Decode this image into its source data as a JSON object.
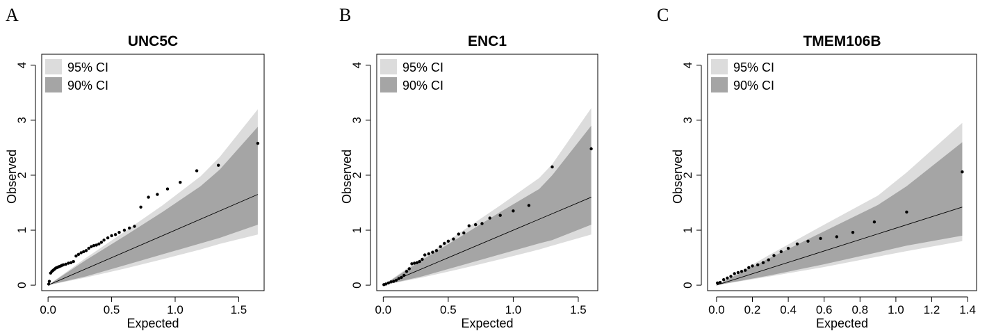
{
  "chart_data": [
    {
      "type": "scatter",
      "panel_label": "A",
      "title": "UNC5C",
      "xlabel": "Expected",
      "ylabel": "Observed",
      "xlim": [
        -0.05,
        1.7
      ],
      "ylim": [
        -0.1,
        4.2
      ],
      "xticks": [
        "0.0",
        "0.5",
        "1.0",
        "1.5"
      ],
      "xtick_values": [
        0,
        0.5,
        1.0,
        1.5
      ],
      "yticks": [
        "0",
        "1",
        "2",
        "3",
        "4"
      ],
      "ytick_values": [
        0,
        1,
        2,
        3,
        4
      ],
      "legend": [
        "95% CI",
        "90% CI"
      ],
      "legend_position": "top-left",
      "band_colors": {
        "ci95": "#dcdcdc",
        "ci90": "#a5a5a5"
      },
      "ci95": {
        "x": [
          0,
          0.3,
          0.6,
          0.9,
          1.2,
          1.35,
          1.65
        ],
        "upper": [
          0,
          0.5,
          0.97,
          1.45,
          1.98,
          2.33,
          3.2
        ],
        "lower": [
          0,
          0.14,
          0.3,
          0.47,
          0.65,
          0.75,
          0.92
        ]
      },
      "ci90": {
        "x": [
          0,
          0.3,
          0.6,
          0.9,
          1.2,
          1.35,
          1.65
        ],
        "upper": [
          0,
          0.46,
          0.89,
          1.33,
          1.8,
          2.1,
          2.88
        ],
        "lower": [
          0,
          0.16,
          0.36,
          0.56,
          0.76,
          0.86,
          1.1
        ]
      },
      "reference_line": {
        "x": [
          0,
          1.65
        ],
        "y": [
          0,
          1.65
        ]
      },
      "points": {
        "x": [
          0.005,
          0.01,
          0.02,
          0.03,
          0.04,
          0.05,
          0.06,
          0.07,
          0.08,
          0.09,
          0.1,
          0.11,
          0.12,
          0.14,
          0.16,
          0.18,
          0.2,
          0.22,
          0.24,
          0.26,
          0.28,
          0.3,
          0.32,
          0.34,
          0.36,
          0.38,
          0.4,
          0.42,
          0.44,
          0.47,
          0.5,
          0.53,
          0.56,
          0.6,
          0.64,
          0.68,
          0.73,
          0.79,
          0.86,
          0.94,
          1.04,
          1.17,
          1.34,
          1.65
        ],
        "y": [
          0.02,
          0.07,
          0.22,
          0.25,
          0.27,
          0.29,
          0.31,
          0.32,
          0.33,
          0.34,
          0.35,
          0.36,
          0.37,
          0.38,
          0.4,
          0.41,
          0.43,
          0.53,
          0.56,
          0.59,
          0.61,
          0.63,
          0.67,
          0.7,
          0.72,
          0.73,
          0.75,
          0.78,
          0.82,
          0.86,
          0.9,
          0.92,
          0.96,
          1.0,
          1.04,
          1.07,
          1.42,
          1.6,
          1.65,
          1.75,
          1.87,
          2.08,
          2.18,
          2.58
        ]
      }
    },
    {
      "type": "scatter",
      "panel_label": "B",
      "title": "ENC1",
      "xlabel": "Expected",
      "ylabel": "Observed",
      "xlim": [
        -0.05,
        1.65
      ],
      "ylim": [
        -0.1,
        4.2
      ],
      "xticks": [
        "0.0",
        "0.5",
        "1.0",
        "1.5"
      ],
      "xtick_values": [
        0,
        0.5,
        1.0,
        1.5
      ],
      "yticks": [
        "0",
        "1",
        "2",
        "3",
        "4"
      ],
      "ytick_values": [
        0,
        1,
        2,
        3,
        4
      ],
      "legend": [
        "95% CI",
        "90% CI"
      ],
      "legend_position": "top-left",
      "band_colors": {
        "ci95": "#dcdcdc",
        "ci90": "#a5a5a5"
      },
      "ci95": {
        "x": [
          0,
          0.3,
          0.6,
          0.9,
          1.2,
          1.3,
          1.6
        ],
        "upper": [
          0,
          0.5,
          0.97,
          1.45,
          1.95,
          2.2,
          3.22
        ],
        "lower": [
          0,
          0.14,
          0.3,
          0.47,
          0.65,
          0.72,
          0.92
        ]
      },
      "ci90": {
        "x": [
          0,
          0.3,
          0.6,
          0.9,
          1.2,
          1.3,
          1.6
        ],
        "upper": [
          0,
          0.46,
          0.89,
          1.33,
          1.75,
          2.0,
          2.9
        ],
        "lower": [
          0,
          0.16,
          0.36,
          0.56,
          0.76,
          0.82,
          1.1
        ]
      },
      "reference_line": {
        "x": [
          0,
          1.6
        ],
        "y": [
          0,
          1.6
        ]
      },
      "points": {
        "x": [
          0.005,
          0.02,
          0.04,
          0.06,
          0.08,
          0.1,
          0.12,
          0.14,
          0.16,
          0.18,
          0.2,
          0.22,
          0.24,
          0.26,
          0.28,
          0.3,
          0.32,
          0.35,
          0.38,
          0.41,
          0.44,
          0.47,
          0.5,
          0.54,
          0.58,
          0.62,
          0.66,
          0.71,
          0.76,
          0.82,
          0.9,
          1.0,
          1.12,
          1.3,
          1.6
        ],
        "y": [
          0.01,
          0.02,
          0.04,
          0.06,
          0.07,
          0.09,
          0.12,
          0.14,
          0.18,
          0.25,
          0.3,
          0.39,
          0.4,
          0.41,
          0.43,
          0.47,
          0.55,
          0.57,
          0.6,
          0.63,
          0.7,
          0.76,
          0.8,
          0.84,
          0.93,
          0.95,
          1.08,
          1.1,
          1.12,
          1.22,
          1.27,
          1.35,
          1.45,
          2.15,
          2.48
        ]
      }
    },
    {
      "type": "scatter",
      "panel_label": "C",
      "title": "TMEM106B",
      "xlabel": "Expected",
      "ylabel": "Observed",
      "xlim": [
        -0.05,
        1.45
      ],
      "ylim": [
        -0.1,
        4.2
      ],
      "xticks": [
        "0.0",
        "0.2",
        "0.4",
        "0.6",
        "0.8",
        "1.0",
        "1.2",
        "1.4"
      ],
      "xtick_values": [
        0,
        0.2,
        0.4,
        0.6,
        0.8,
        1.0,
        1.2,
        1.4
      ],
      "yticks": [
        "0",
        "1",
        "2",
        "3",
        "4"
      ],
      "ytick_values": [
        0,
        1,
        2,
        3,
        4
      ],
      "legend": [
        "95% CI",
        "90% CI"
      ],
      "legend_position": "top-left",
      "band_colors": {
        "ci95": "#dcdcdc",
        "ci90": "#a5a5a5"
      },
      "ci95": {
        "x": [
          0,
          0.3,
          0.6,
          0.9,
          1.06,
          1.37
        ],
        "upper": [
          0,
          0.56,
          1.1,
          1.63,
          2.05,
          2.95
        ],
        "lower": [
          0,
          0.16,
          0.33,
          0.52,
          0.62,
          0.8
        ]
      },
      "ci90": {
        "x": [
          0,
          0.3,
          0.6,
          0.9,
          1.06,
          1.37
        ],
        "upper": [
          0,
          0.5,
          0.98,
          1.46,
          1.8,
          2.6
        ],
        "lower": [
          0,
          0.18,
          0.38,
          0.6,
          0.72,
          0.9
        ]
      },
      "reference_line": {
        "x": [
          0,
          1.37
        ],
        "y": [
          0,
          1.42
        ]
      },
      "points": {
        "x": [
          0.005,
          0.02,
          0.04,
          0.06,
          0.08,
          0.1,
          0.12,
          0.14,
          0.16,
          0.18,
          0.2,
          0.23,
          0.26,
          0.29,
          0.32,
          0.36,
          0.4,
          0.45,
          0.51,
          0.58,
          0.67,
          0.76,
          0.88,
          1.06,
          1.37
        ],
        "y": [
          0.04,
          0.05,
          0.1,
          0.13,
          0.16,
          0.21,
          0.23,
          0.25,
          0.27,
          0.32,
          0.35,
          0.37,
          0.41,
          0.46,
          0.54,
          0.61,
          0.67,
          0.75,
          0.8,
          0.85,
          0.88,
          0.96,
          1.15,
          1.33,
          2.06
        ]
      }
    }
  ]
}
